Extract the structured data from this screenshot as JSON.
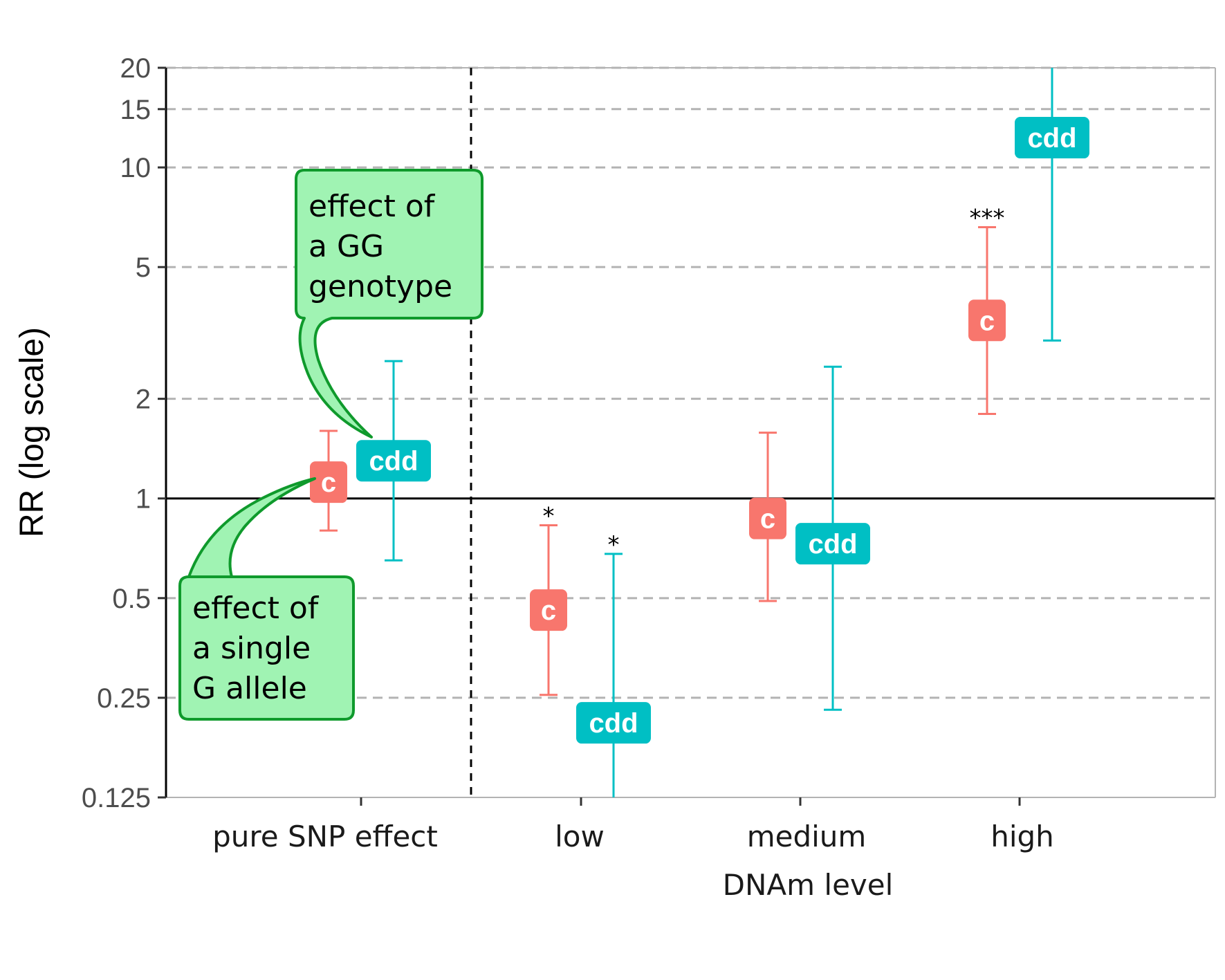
{
  "chart_data": {
    "type": "scatter",
    "ylabel": "RR (log scale)",
    "xlabel": "DNAm level",
    "y_scale": "log",
    "ylim": [
      0.125,
      20
    ],
    "y_ticks": [
      {
        "value": 20,
        "label": "20"
      },
      {
        "value": 15,
        "label": "15"
      },
      {
        "value": 10,
        "label": "10"
      },
      {
        "value": 5,
        "label": "5"
      },
      {
        "value": 2,
        "label": "2"
      },
      {
        "value": 1,
        "label": "1"
      },
      {
        "value": 0.5,
        "label": "0.5"
      },
      {
        "value": 0.25,
        "label": "0.25"
      },
      {
        "value": 0.125,
        "label": "0.125"
      }
    ],
    "categories": [
      "pure SNP effect",
      "low",
      "medium",
      "high"
    ],
    "reference_line": 1,
    "grid": "horizontal dashed",
    "series": [
      {
        "label": "c",
        "color": "#F8766D",
        "points": [
          {
            "category": "pure SNP effect",
            "estimate": 1.12,
            "lower": 0.8,
            "upper": 1.6,
            "significance": ""
          },
          {
            "category": "low",
            "estimate": 0.46,
            "lower": 0.255,
            "upper": 0.83,
            "significance": "*"
          },
          {
            "category": "medium",
            "estimate": 0.87,
            "lower": 0.49,
            "upper": 1.58,
            "significance": ""
          },
          {
            "category": "high",
            "estimate": 3.45,
            "lower": 1.8,
            "upper": 6.6,
            "significance": "***"
          }
        ]
      },
      {
        "label": "cdd",
        "color": "#00BFC4",
        "points": [
          {
            "category": "pure SNP effect",
            "estimate": 1.3,
            "lower": 0.65,
            "upper": 2.6,
            "significance": ""
          },
          {
            "category": "low",
            "estimate": 0.21,
            "lower": 0.125,
            "upper": 0.68,
            "significance": "*"
          },
          {
            "category": "medium",
            "estimate": 0.73,
            "lower": 0.23,
            "upper": 2.5,
            "significance": ""
          },
          {
            "category": "high",
            "estimate": 12.3,
            "lower": 3.0,
            "upper": 20,
            "significance": ""
          }
        ]
      }
    ],
    "annotations": {
      "callout_gg": [
        "effect of",
        "a GG",
        "genotype"
      ],
      "callout_g": [
        "effect of",
        "a single",
        "G allele"
      ]
    }
  }
}
